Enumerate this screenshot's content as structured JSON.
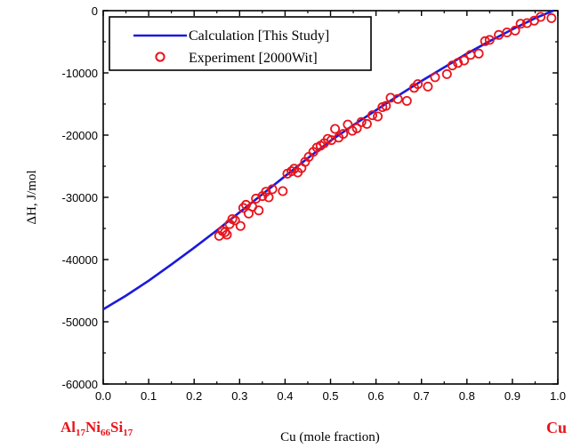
{
  "chart_data": {
    "type": "scatter",
    "xlabel": "Cu (mole fraction)",
    "ylabel": "ΔH, J/mol",
    "xlim": [
      0.0,
      1.0
    ],
    "ylim": [
      -60000,
      0
    ],
    "xticks": [
      "0.0",
      "0.1",
      "0.2",
      "0.3",
      "0.4",
      "0.5",
      "0.6",
      "0.7",
      "0.8",
      "0.9",
      "1.0"
    ],
    "yticks": [
      "0",
      "-10000",
      "-20000",
      "-30000",
      "-40000",
      "-50000",
      "-60000"
    ],
    "grid": false,
    "legend_position": "top-left",
    "left_endmember": {
      "el1": "Al",
      "n1": "17",
      "el2": "Ni",
      "n2": "66",
      "el3": "Si",
      "n3": "17"
    },
    "right_endmember": "Cu",
    "series": [
      {
        "name": "Calculation [This Study]",
        "kind": "line",
        "color": "#1a1adc",
        "x": [
          0.0,
          0.05,
          0.1,
          0.15,
          0.2,
          0.25,
          0.3,
          0.35,
          0.4,
          0.45,
          0.5,
          0.55,
          0.6,
          0.65,
          0.7,
          0.75,
          0.8,
          0.85,
          0.9,
          0.95,
          0.99
        ],
        "y": [
          -48000,
          -45800,
          -43400,
          -40800,
          -38100,
          -35300,
          -32400,
          -29500,
          -26600,
          -23700,
          -20900,
          -18400,
          -16000,
          -13600,
          -11300,
          -9100,
          -6900,
          -4900,
          -3000,
          -1200,
          0
        ]
      },
      {
        "name": "Experiment [2000Wit]",
        "kind": "scatter",
        "color": "#e8141c",
        "x": [
          0.255,
          0.262,
          0.268,
          0.272,
          0.278,
          0.284,
          0.29,
          0.302,
          0.308,
          0.314,
          0.32,
          0.328,
          0.336,
          0.342,
          0.35,
          0.358,
          0.364,
          0.372,
          0.395,
          0.405,
          0.414,
          0.42,
          0.428,
          0.436,
          0.444,
          0.452,
          0.462,
          0.47,
          0.478,
          0.486,
          0.494,
          0.502,
          0.51,
          0.518,
          0.528,
          0.538,
          0.548,
          0.558,
          0.568,
          0.58,
          0.592,
          0.604,
          0.614,
          0.622,
          0.632,
          0.648,
          0.668,
          0.684,
          0.692,
          0.714,
          0.73,
          0.756,
          0.768,
          0.78,
          0.794,
          0.808,
          0.826,
          0.84,
          0.85,
          0.87,
          0.888,
          0.906,
          0.918,
          0.932,
          0.948,
          0.962,
          0.986
        ],
        "y": [
          -36200,
          -35400,
          -35600,
          -36000,
          -34300,
          -33500,
          -33700,
          -34600,
          -31700,
          -31200,
          -32600,
          -31500,
          -30200,
          -32100,
          -29800,
          -29100,
          -30000,
          -28700,
          -29000,
          -26200,
          -25800,
          -25400,
          -26000,
          -25300,
          -24300,
          -23500,
          -22700,
          -22000,
          -21700,
          -21300,
          -20600,
          -20800,
          -19000,
          -20400,
          -19800,
          -18300,
          -19300,
          -18900,
          -17900,
          -18200,
          -16800,
          -17000,
          -15500,
          -15300,
          -14000,
          -14200,
          -14500,
          -12400,
          -11800,
          -12200,
          -10700,
          -10200,
          -8800,
          -8400,
          -8000,
          -7100,
          -6900,
          -4900,
          -4700,
          -3900,
          -3500,
          -3200,
          -2100,
          -2000,
          -1600,
          -1000,
          -1200
        ]
      }
    ]
  }
}
